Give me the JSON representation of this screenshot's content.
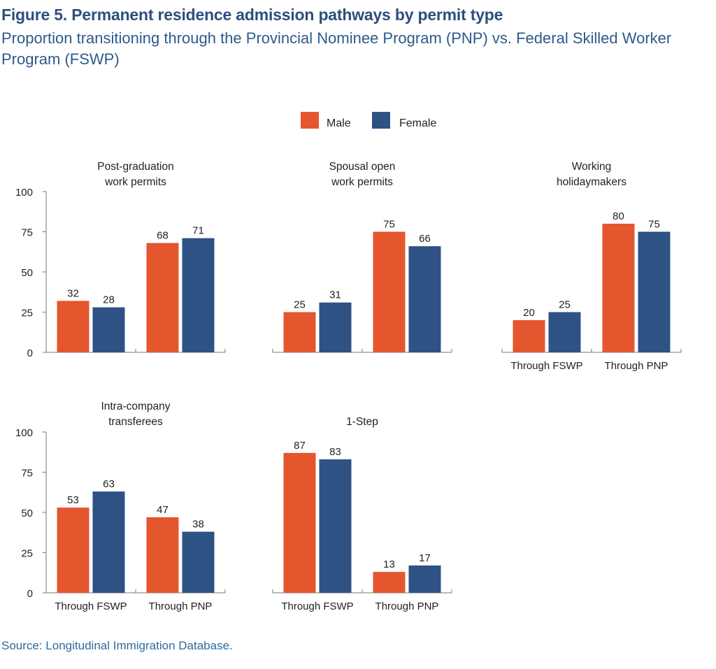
{
  "title": "Figure 5. Permanent residence admission pathways by permit type",
  "subtitle": "Proportion transitioning through the Provincial Nominee Program (PNP) vs. Federal Skilled Worker Program (FSWP)",
  "source": "Source: Longitudinal Immigration Database.",
  "colors": {
    "male": "#e4572e",
    "female": "#2e5283"
  },
  "chart_data": {
    "type": "bar",
    "legend": {
      "position": "top-center",
      "entries": [
        "Male",
        "Female"
      ]
    },
    "ylim": [
      0,
      100
    ],
    "yticks": [
      0,
      25,
      50,
      75,
      100
    ],
    "categories": [
      "Through FSWP",
      "Through PNP"
    ],
    "panels": [
      {
        "title": [
          "Post-graduation",
          "work permits"
        ],
        "series": [
          {
            "name": "Male",
            "values": [
              32,
              68
            ]
          },
          {
            "name": "Female",
            "values": [
              28,
              71
            ]
          }
        ],
        "show_yaxis": true,
        "show_xlabels": false
      },
      {
        "title": [
          "Spousal open",
          "work permits"
        ],
        "series": [
          {
            "name": "Male",
            "values": [
              25,
              75
            ]
          },
          {
            "name": "Female",
            "values": [
              31,
              66
            ]
          }
        ],
        "show_yaxis": false,
        "show_xlabels": false
      },
      {
        "title": [
          "Working",
          "holidaymakers"
        ],
        "series": [
          {
            "name": "Male",
            "values": [
              20,
              80
            ]
          },
          {
            "name": "Female",
            "values": [
              25,
              75
            ]
          }
        ],
        "show_yaxis": false,
        "show_xlabels": true
      },
      {
        "title": [
          "Intra-company",
          "transferees"
        ],
        "series": [
          {
            "name": "Male",
            "values": [
              53,
              47
            ]
          },
          {
            "name": "Female",
            "values": [
              63,
              38
            ]
          }
        ],
        "show_yaxis": true,
        "show_xlabels": true
      },
      {
        "title": [
          "1-Step"
        ],
        "series": [
          {
            "name": "Male",
            "values": [
              87,
              13
            ]
          },
          {
            "name": "Female",
            "values": [
              83,
              17
            ]
          }
        ],
        "show_yaxis": false,
        "show_xlabels": true
      }
    ]
  }
}
